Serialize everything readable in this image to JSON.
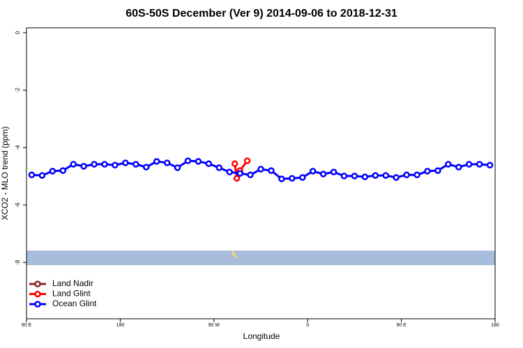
{
  "chart_data": {
    "type": "line",
    "title": "60S-50S December (Ver 9)   2014-09-06 to 2018-12-31",
    "x_label": "Longitude",
    "y_label": "XCO2 - MLO trend (ppm)",
    "xlim": [
      90,
      540
    ],
    "ylim": [
      -9.96,
      0.17
    ],
    "xticks": [
      {
        "value": 90,
        "label": "90 E"
      },
      {
        "value": 180,
        "label": "180"
      },
      {
        "value": 270,
        "label": "90 W"
      },
      {
        "value": 360,
        "label": "0"
      },
      {
        "value": 450,
        "label": "90 E"
      },
      {
        "value": 540,
        "label": "180"
      }
    ],
    "yticks": [
      0,
      -2,
      -4,
      -6,
      -8
    ],
    "legend": "bottom-left",
    "series": [
      {
        "name": "Land Nadir",
        "color": "#8b2323",
        "x": [],
        "values": []
      },
      {
        "name": "Land Glint",
        "color": "#ff0000",
        "x": [
          290,
          292,
          295,
          302
        ],
        "values": [
          -4.56,
          -5.07,
          -4.8,
          -4.46
        ]
      },
      {
        "name": "Ocean Glint",
        "color": "#0000ff",
        "x": [
          95,
          105,
          115,
          125,
          135,
          145,
          155,
          165,
          175,
          185,
          195,
          205,
          215,
          225,
          235,
          245,
          255,
          265,
          275,
          285,
          295,
          305,
          315,
          325,
          335,
          345,
          355,
          365,
          375,
          385,
          395,
          405,
          415,
          425,
          435,
          445,
          455,
          465,
          475,
          485,
          495,
          505,
          515,
          525,
          535
        ],
        "values": [
          -4.95,
          -4.97,
          -4.82,
          -4.8,
          -4.58,
          -4.65,
          -4.58,
          -4.58,
          -4.61,
          -4.53,
          -4.58,
          -4.68,
          -4.48,
          -4.53,
          -4.7,
          -4.46,
          -4.48,
          -4.56,
          -4.7,
          -4.85,
          -4.9,
          -4.95,
          -4.75,
          -4.8,
          -5.09,
          -5.07,
          -5.04,
          -4.82,
          -4.92,
          -4.85,
          -4.99,
          -4.99,
          -5.02,
          -4.97,
          -4.97,
          -5.04,
          -4.95,
          -4.95,
          -4.82,
          -4.8,
          -4.58,
          -4.68,
          -4.58,
          -4.58,
          -4.61
        ]
      }
    ]
  }
}
